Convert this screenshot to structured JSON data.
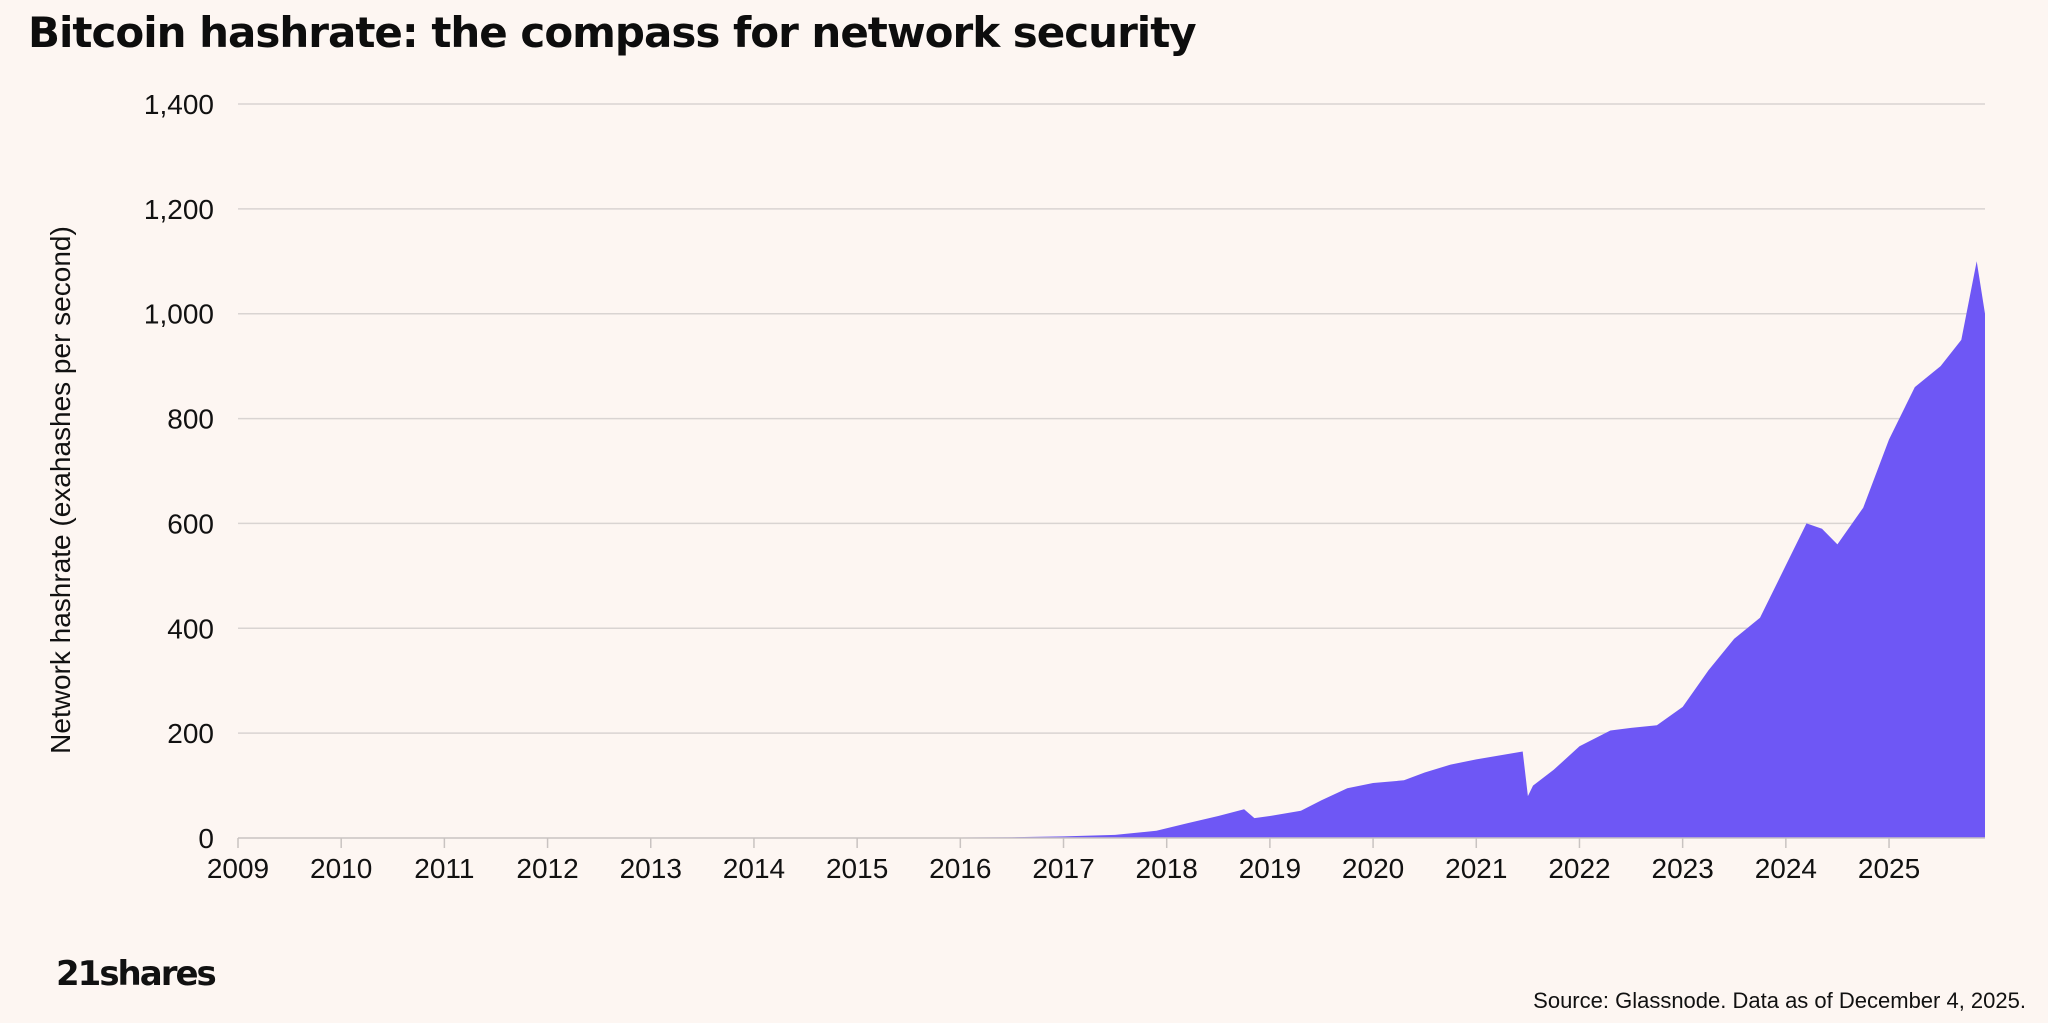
{
  "header": {
    "title": "Bitcoin hashrate: the compass for network security"
  },
  "footer": {
    "logo_text": "21shares",
    "source": "Source: Glassnode. Data as of December 4, 2025."
  },
  "colors": {
    "area": "#6e57f5",
    "grid": "#d9d4d2",
    "background": "#fdf6f2"
  },
  "chart_data": {
    "type": "area",
    "title": "Bitcoin hashrate: the compass for network security",
    "xlabel": "",
    "ylabel": "Network hashrate (exahashes per second)",
    "xlim": [
      2009,
      2025.93
    ],
    "ylim": [
      0,
      1400
    ],
    "y_ticks": [
      0,
      200,
      400,
      600,
      800,
      1000,
      1200,
      1400
    ],
    "y_tick_labels": [
      "0",
      "200",
      "400",
      "600",
      "800",
      "1,000",
      "1,200",
      "1,400"
    ],
    "x_ticks": [
      2009,
      2010,
      2011,
      2012,
      2013,
      2014,
      2015,
      2016,
      2017,
      2018,
      2019,
      2020,
      2021,
      2022,
      2023,
      2024,
      2025
    ],
    "x_tick_labels": [
      "2009",
      "2010",
      "2011",
      "2012",
      "2013",
      "2014",
      "2015",
      "2016",
      "2017",
      "2018",
      "2019",
      "2020",
      "2021",
      "2022",
      "2023",
      "2024",
      "2025"
    ],
    "grid": true,
    "legend": "none",
    "series": [
      {
        "x": [
          2009.0,
          2016.0,
          2016.5,
          2017.0,
          2017.5,
          2017.9,
          2018.2,
          2018.5,
          2018.75,
          2018.85,
          2019.0,
          2019.3,
          2019.5,
          2019.75,
          2020.0,
          2020.3,
          2020.5,
          2020.75,
          2021.0,
          2021.3,
          2021.45,
          2021.5,
          2021.55,
          2021.75,
          2022.0,
          2022.3,
          2022.5,
          2022.75,
          2023.0,
          2023.25,
          2023.5,
          2023.75,
          2024.0,
          2024.2,
          2024.35,
          2024.5,
          2024.75,
          2025.0,
          2025.25,
          2025.5,
          2025.7,
          2025.85,
          2025.93
        ],
        "y": [
          0,
          1,
          1.5,
          3,
          6,
          14,
          28,
          42,
          55,
          38,
          42,
          52,
          72,
          95,
          105,
          110,
          125,
          140,
          150,
          160,
          165,
          80,
          100,
          130,
          175,
          205,
          210,
          215,
          250,
          320,
          380,
          420,
          520,
          600,
          590,
          560,
          630,
          760,
          860,
          900,
          950,
          1100,
          1000
        ]
      }
    ]
  }
}
